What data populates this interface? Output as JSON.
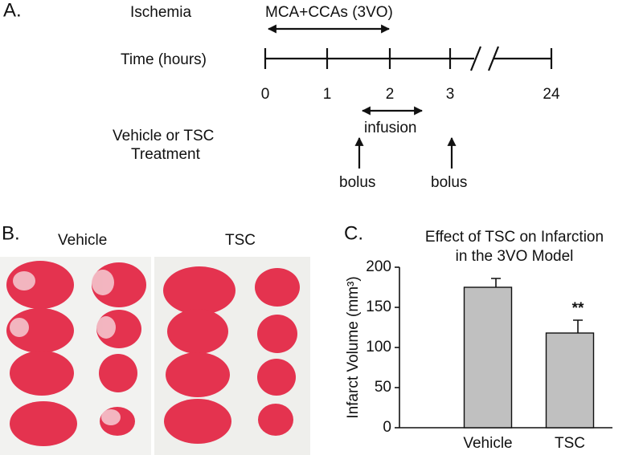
{
  "panel_a": {
    "label": "A.",
    "ischemia": "Ischemia",
    "occlusion": "MCA+CCAs (3VO)",
    "time_label": "Time (hours)",
    "times": [
      0,
      1,
      2,
      3,
      24
    ],
    "treatment": [
      "Vehicle or TSC",
      "Treatment"
    ],
    "infusion": "infusion",
    "bolus": [
      "bolus",
      "bolus"
    ]
  },
  "panel_b": {
    "label": "B.",
    "groups": [
      "Vehicle",
      "TSC"
    ]
  },
  "chart_data": {
    "type": "bar",
    "panel_label": "C.",
    "title": [
      "Effect of TSC on Infarction",
      "in the 3VO Model"
    ],
    "y_label": "Infarct Volume (mm³)",
    "categories": [
      "Vehicle",
      "TSC"
    ],
    "values": [
      175,
      118
    ],
    "errors": [
      11,
      16
    ],
    "significance": [
      null,
      "**"
    ],
    "color": "#c0c0c0",
    "ylim": [
      0,
      200
    ],
    "yticks": [
      0,
      50,
      100,
      150,
      200
    ]
  }
}
